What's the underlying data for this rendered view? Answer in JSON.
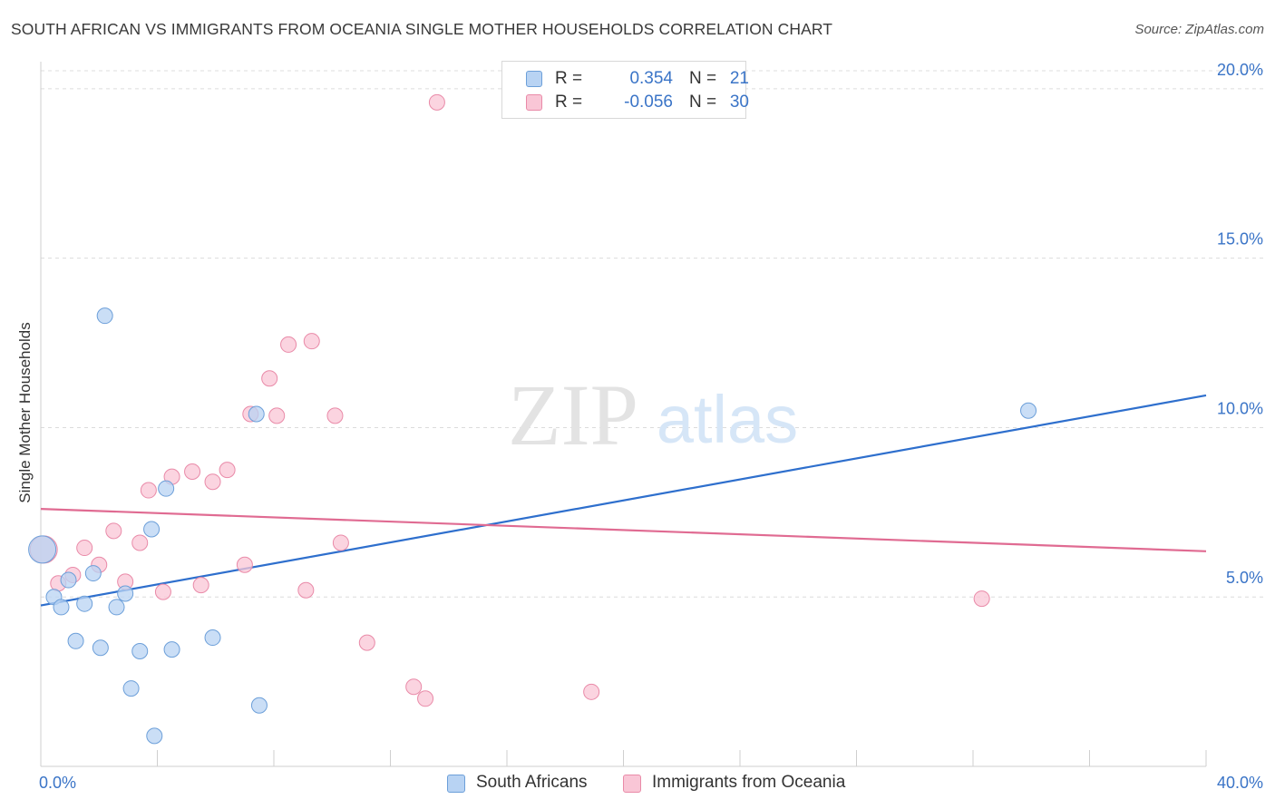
{
  "title": "SOUTH AFRICAN VS IMMIGRANTS FROM OCEANIA SINGLE MOTHER HOUSEHOLDS CORRELATION CHART",
  "source": "Source: ZipAtlas.com",
  "watermark": {
    "zip": "ZIP",
    "atlas": "atlas"
  },
  "legend": {
    "rows": [
      {
        "r_label": "R =",
        "r_value": "0.354",
        "n_label": "N =",
        "n_value": "21"
      },
      {
        "r_label": "R =",
        "r_value": "-0.056",
        "n_label": "N =",
        "n_value": "30"
      }
    ]
  },
  "chart_data": {
    "type": "scatter",
    "title": "SOUTH AFRICAN VS IMMIGRANTS FROM OCEANIA SINGLE MOTHER HOUSEHOLDS CORRELATION CHART",
    "xlabel": "",
    "ylabel": "Single Mother Households",
    "xlim": [
      0,
      40
    ],
    "ylim": [
      0,
      20.8
    ],
    "x_tick_labels": [
      "0.0%",
      "40.0%"
    ],
    "y_ticks": [
      5,
      10,
      15,
      20
    ],
    "y_tick_labels": [
      "5.0%",
      "10.0%",
      "15.0%",
      "20.0%"
    ],
    "grid": true,
    "legend_position": "bottom",
    "colors": {
      "blue_fill": "#b8d3f3",
      "blue_stroke": "#6c9fd9",
      "blue_line": "#2e6fcd",
      "pink_fill": "#f9c6d6",
      "pink_stroke": "#e98aa8",
      "pink_line": "#e06b92",
      "tick_label": "#3a74c7",
      "grid": "#dcdcdc"
    },
    "series": [
      {
        "name": "South Africans",
        "points": [
          {
            "x": 0.05,
            "y": 6.4,
            "big": true
          },
          {
            "x": 0.45,
            "y": 5.0
          },
          {
            "x": 0.7,
            "y": 4.7
          },
          {
            "x": 0.95,
            "y": 5.5
          },
          {
            "x": 1.2,
            "y": 3.7
          },
          {
            "x": 1.5,
            "y": 4.8
          },
          {
            "x": 1.8,
            "y": 5.7
          },
          {
            "x": 2.05,
            "y": 3.5
          },
          {
            "x": 2.2,
            "y": 13.3
          },
          {
            "x": 2.6,
            "y": 4.7
          },
          {
            "x": 2.9,
            "y": 5.1
          },
          {
            "x": 3.1,
            "y": 2.3
          },
          {
            "x": 3.4,
            "y": 3.4
          },
          {
            "x": 3.8,
            "y": 7.0
          },
          {
            "x": 3.9,
            "y": 0.9
          },
          {
            "x": 4.3,
            "y": 8.2
          },
          {
            "x": 4.5,
            "y": 3.45
          },
          {
            "x": 5.9,
            "y": 3.8
          },
          {
            "x": 7.4,
            "y": 10.4
          },
          {
            "x": 7.5,
            "y": 1.8
          },
          {
            "x": 33.9,
            "y": 10.5
          }
        ],
        "trend": {
          "x0": 0,
          "y0": 4.75,
          "x1": 40,
          "y1": 10.95
        }
      },
      {
        "name": "Immigrants from Oceania",
        "points": [
          {
            "x": 0.1,
            "y": 6.4,
            "big": true
          },
          {
            "x": 0.6,
            "y": 5.4
          },
          {
            "x": 1.1,
            "y": 5.65
          },
          {
            "x": 1.5,
            "y": 6.45
          },
          {
            "x": 2.0,
            "y": 5.95
          },
          {
            "x": 2.5,
            "y": 6.95
          },
          {
            "x": 2.9,
            "y": 5.45
          },
          {
            "x": 3.4,
            "y": 6.6
          },
          {
            "x": 3.7,
            "y": 8.15
          },
          {
            "x": 4.2,
            "y": 5.15
          },
          {
            "x": 4.5,
            "y": 8.55
          },
          {
            "x": 5.2,
            "y": 8.7
          },
          {
            "x": 5.5,
            "y": 5.35
          },
          {
            "x": 5.9,
            "y": 8.4
          },
          {
            "x": 6.4,
            "y": 8.75
          },
          {
            "x": 7.0,
            "y": 5.95
          },
          {
            "x": 7.2,
            "y": 10.4
          },
          {
            "x": 7.85,
            "y": 11.45
          },
          {
            "x": 8.1,
            "y": 10.35
          },
          {
            "x": 8.5,
            "y": 12.45
          },
          {
            "x": 9.1,
            "y": 5.2
          },
          {
            "x": 9.3,
            "y": 12.55
          },
          {
            "x": 10.1,
            "y": 10.35
          },
          {
            "x": 10.3,
            "y": 6.6
          },
          {
            "x": 11.2,
            "y": 3.65
          },
          {
            "x": 12.8,
            "y": 2.35
          },
          {
            "x": 13.2,
            "y": 2.0
          },
          {
            "x": 13.6,
            "y": 19.6
          },
          {
            "x": 18.9,
            "y": 2.2
          },
          {
            "x": 32.3,
            "y": 4.95
          }
        ],
        "trend": {
          "x0": 0,
          "y0": 7.6,
          "x1": 40,
          "y1": 6.35
        }
      }
    ]
  }
}
